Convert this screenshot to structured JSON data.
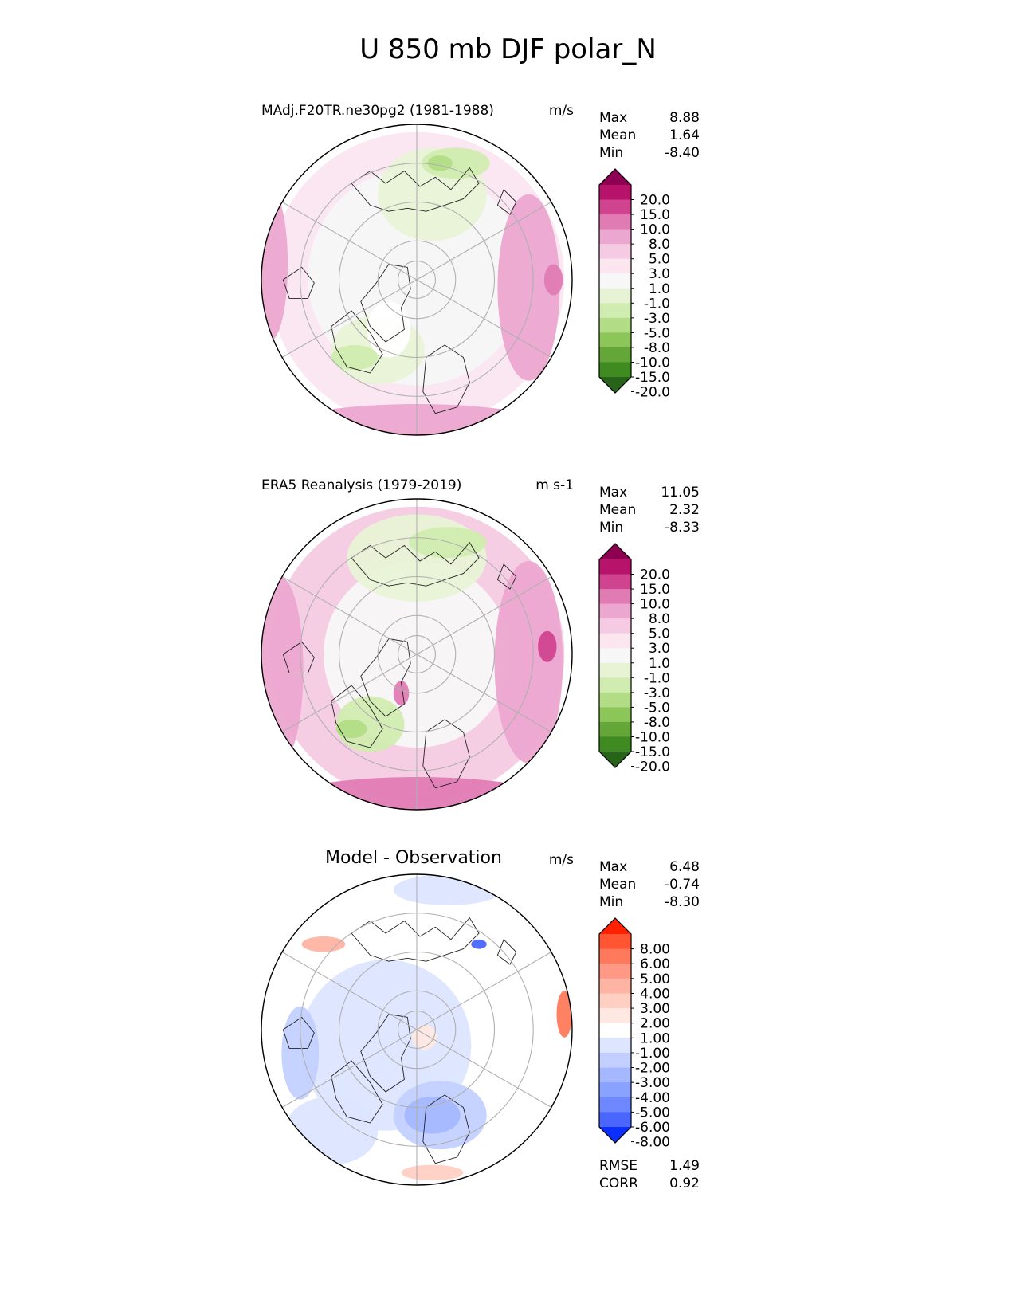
{
  "title": "U 850 mb DJF polar_N",
  "chart_data": [
    {
      "type": "heatmap",
      "projection": "north-polar-stereographic",
      "title": "MAdj.F20TR.ne30pg2 (1981-1988)",
      "units": "m/s",
      "stats": [
        {
          "label": "Max",
          "value": "8.88"
        },
        {
          "label": "Mean",
          "value": "1.64"
        },
        {
          "label": "Min",
          "value": "-8.40"
        }
      ],
      "colorbar": {
        "levels": [
          "20.0",
          "15.0",
          "10.0",
          "8.0",
          "5.0",
          "3.0",
          "1.0",
          "-1.0",
          "-3.0",
          "-5.0",
          "-8.0",
          "-10.0",
          "-15.0",
          "-20.0"
        ],
        "colors": [
          "#8e0152",
          "#b8136b",
          "#d0448f",
          "#e07bb4",
          "#eca7d0",
          "#f5cbe3",
          "#fbe6f0",
          "#f7f7f7",
          "#e8f3d6",
          "#d1ecb0",
          "#b2dd86",
          "#8cc659",
          "#65a638",
          "#3f8a21",
          "#276419"
        ]
      },
      "regions": [
        {
          "color": "#fbe6f0",
          "cx": 0.0,
          "cy": 0.0,
          "r": 0.95
        },
        {
          "color": "#f7f7f7",
          "cx": 0.0,
          "cy": -0.02,
          "r": 0.7
        },
        {
          "color": "#eca7d0",
          "cx": 0.0,
          "cy": 0.96,
          "rx": 0.9,
          "ry": 0.16
        },
        {
          "color": "#eca7d0",
          "cx": -0.95,
          "cy": -0.1,
          "rx": 0.12,
          "ry": 0.5
        },
        {
          "color": "#eca7d0",
          "cx": 0.72,
          "cy": 0.05,
          "rx": 0.2,
          "ry": 0.6
        },
        {
          "color": "#e07bb4",
          "cx": 0.88,
          "cy": 0.0,
          "rx": 0.06,
          "ry": 0.1
        },
        {
          "color": "#e8f3d6",
          "cx": 0.1,
          "cy": -0.55,
          "rx": 0.35,
          "ry": 0.3
        },
        {
          "color": "#d1ecb0",
          "cx": 0.25,
          "cy": -0.75,
          "rx": 0.22,
          "ry": 0.1
        },
        {
          "color": "#b2dd86",
          "cx": 0.15,
          "cy": -0.75,
          "rx": 0.08,
          "ry": 0.05
        },
        {
          "color": "#e8f3d6",
          "cx": -0.25,
          "cy": 0.45,
          "rx": 0.3,
          "ry": 0.22
        },
        {
          "color": "#d1ecb0",
          "cx": -0.4,
          "cy": 0.5,
          "rx": 0.15,
          "ry": 0.08
        },
        {
          "color": "#ffffff",
          "cx": -0.18,
          "cy": 0.32,
          "rx": 0.14,
          "ry": 0.18
        }
      ]
    },
    {
      "type": "heatmap",
      "projection": "north-polar-stereographic",
      "title": "ERA5 Reanalysis (1979-2019)",
      "units": "m s-1",
      "stats": [
        {
          "label": "Max",
          "value": "11.05"
        },
        {
          "label": "Mean",
          "value": "2.32"
        },
        {
          "label": "Min",
          "value": "-8.33"
        }
      ],
      "colorbar": {
        "levels": [
          "20.0",
          "15.0",
          "10.0",
          "8.0",
          "5.0",
          "3.0",
          "1.0",
          "-1.0",
          "-3.0",
          "-5.0",
          "-8.0",
          "-10.0",
          "-15.0",
          "-20.0"
        ],
        "colors": [
          "#8e0152",
          "#b8136b",
          "#d0448f",
          "#e07bb4",
          "#eca7d0",
          "#f5cbe3",
          "#fbe6f0",
          "#f7f7f7",
          "#e8f3d6",
          "#d1ecb0",
          "#b2dd86",
          "#8cc659",
          "#65a638",
          "#3f8a21",
          "#276419"
        ]
      },
      "regions": [
        {
          "color": "#f5cbe3",
          "cx": 0.0,
          "cy": 0.0,
          "r": 0.95
        },
        {
          "color": "#f7f7f7",
          "cx": 0.0,
          "cy": 0.0,
          "r": 0.6
        },
        {
          "color": "#e07bb4",
          "cx": 0.0,
          "cy": 0.95,
          "rx": 0.9,
          "ry": 0.16
        },
        {
          "color": "#eca7d0",
          "cx": -0.88,
          "cy": 0.1,
          "rx": 0.15,
          "ry": 0.6
        },
        {
          "color": "#eca7d0",
          "cx": 0.72,
          "cy": 0.05,
          "rx": 0.22,
          "ry": 0.65
        },
        {
          "color": "#d0448f",
          "cx": 0.84,
          "cy": -0.05,
          "rx": 0.06,
          "ry": 0.1
        },
        {
          "color": "#e8f3d6",
          "cx": 0.0,
          "cy": -0.62,
          "rx": 0.45,
          "ry": 0.28
        },
        {
          "color": "#d1ecb0",
          "cx": 0.2,
          "cy": -0.72,
          "rx": 0.25,
          "ry": 0.1
        },
        {
          "color": "#d1ecb0",
          "cx": -0.3,
          "cy": 0.45,
          "rx": 0.22,
          "ry": 0.18
        },
        {
          "color": "#b2dd86",
          "cx": -0.42,
          "cy": 0.48,
          "rx": 0.1,
          "ry": 0.06
        },
        {
          "color": "#e07bb4",
          "cx": -0.1,
          "cy": 0.25,
          "rx": 0.05,
          "ry": 0.08
        }
      ]
    },
    {
      "type": "heatmap",
      "projection": "north-polar-stereographic",
      "title": "Model - Observation",
      "units": "m/s",
      "stats": [
        {
          "label": "Max",
          "value": "6.48"
        },
        {
          "label": "Mean",
          "value": "-0.74"
        },
        {
          "label": "Min",
          "value": "-8.30"
        }
      ],
      "extra_stats": [
        {
          "label": "RMSE",
          "value": "1.49"
        },
        {
          "label": "CORR",
          "value": "0.92"
        }
      ],
      "colorbar": {
        "levels": [
          "8.00",
          "6.00",
          "5.00",
          "4.00",
          "3.00",
          "2.00",
          "1.00",
          "-1.00",
          "-2.00",
          "-3.00",
          "-4.00",
          "-5.00",
          "-6.00",
          "-8.00"
        ],
        "colors": [
          "#ff2000",
          "#ff5533",
          "#ff7a5c",
          "#ff9985",
          "#ffb3a3",
          "#ffcfc4",
          "#ffe8e2",
          "#ffffff",
          "#dde5ff",
          "#c3d0ff",
          "#a5b8ff",
          "#8aa2ff",
          "#6e89ff",
          "#4a66ff",
          "#0a2fff"
        ]
      },
      "regions": [
        {
          "color": "#ffffff",
          "cx": 0.0,
          "cy": 0.0,
          "r": 0.97
        },
        {
          "color": "#dde5ff",
          "cx": -0.2,
          "cy": 0.1,
          "rx": 0.55,
          "ry": 0.55
        },
        {
          "color": "#c3d0ff",
          "cx": 0.15,
          "cy": 0.55,
          "rx": 0.3,
          "ry": 0.22
        },
        {
          "color": "#a5b8ff",
          "cx": 0.1,
          "cy": 0.55,
          "rx": 0.18,
          "ry": 0.12
        },
        {
          "color": "#dde5ff",
          "cx": -0.55,
          "cy": 0.65,
          "rx": 0.3,
          "ry": 0.22
        },
        {
          "color": "#c3d0ff",
          "cx": -0.75,
          "cy": 0.15,
          "rx": 0.12,
          "ry": 0.3
        },
        {
          "color": "#dde5ff",
          "cx": 0.2,
          "cy": -0.9,
          "rx": 0.35,
          "ry": 0.1
        },
        {
          "color": "#ffb3a3",
          "cx": -0.6,
          "cy": -0.55,
          "rx": 0.14,
          "ry": 0.05
        },
        {
          "color": "#ff7a5c",
          "cx": 0.95,
          "cy": -0.1,
          "rx": 0.05,
          "ry": 0.15
        },
        {
          "color": "#4a66ff",
          "cx": 0.4,
          "cy": -0.55,
          "rx": 0.05,
          "ry": 0.03
        },
        {
          "color": "#ffcfc4",
          "cx": 0.1,
          "cy": 0.92,
          "rx": 0.2,
          "ry": 0.05
        },
        {
          "color": "#ffe8e2",
          "cx": 0.05,
          "cy": 0.05,
          "rx": 0.08,
          "ry": 0.08
        }
      ]
    }
  ]
}
